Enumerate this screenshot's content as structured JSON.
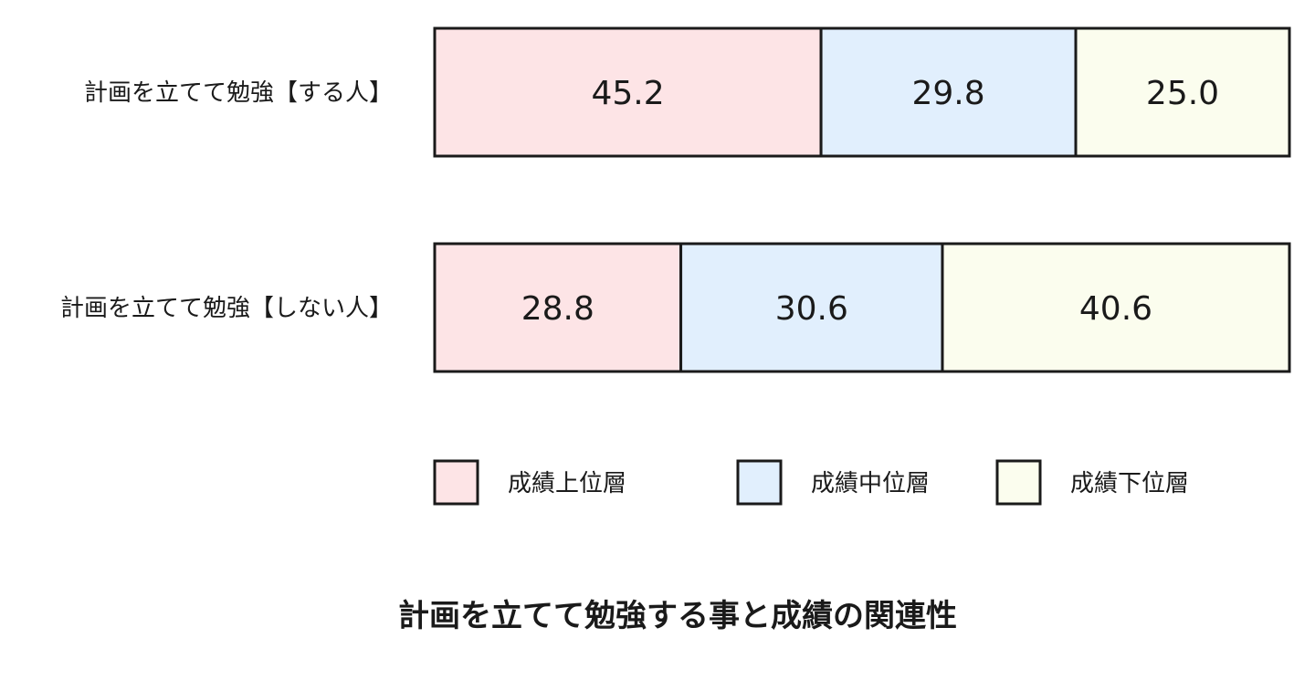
{
  "colors": {
    "成績上位層": "#fde4e6",
    "成績中位層": "#e1effd",
    "成績下位層": "#fbfdee",
    "border": "#1a1a1a"
  },
  "chart_data": {
    "type": "bar",
    "orientation": "horizontal",
    "stacked": true,
    "title": "計画を立てて勉強する事と成績の関連性",
    "categories": [
      "計画を立てて勉強【する人】",
      "計画を立てて勉強【しない人】"
    ],
    "series": [
      {
        "name": "成績上位層",
        "values": [
          45.2,
          28.8
        ]
      },
      {
        "name": "成績中位層",
        "values": [
          29.8,
          30.6
        ]
      },
      {
        "name": "成績下位層",
        "values": [
          25.0,
          40.6
        ]
      }
    ],
    "value_labels": [
      [
        "45.2",
        "29.8",
        "25.0"
      ],
      [
        "28.8",
        "30.6",
        "40.6"
      ]
    ],
    "xlim": [
      0,
      100
    ],
    "grid": false,
    "legend": "bottom"
  }
}
